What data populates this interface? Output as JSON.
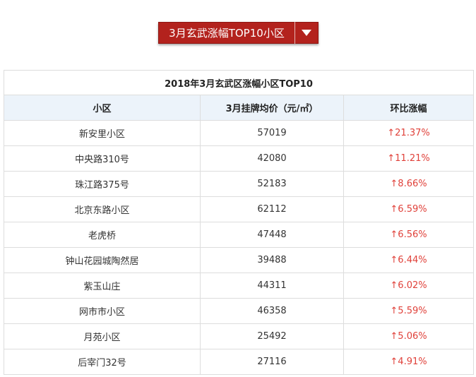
{
  "header": {
    "title": "3月玄武涨幅TOP10小区",
    "dropdown_icon": "caret-down-icon",
    "accent_color": "#b3221d"
  },
  "table": {
    "caption": "2018年3月玄武区涨幅小区TOP10",
    "columns": [
      "小区",
      "3月挂牌均价（元/㎡）",
      "环比涨幅"
    ],
    "rise_color": "#e0413a",
    "rows": [
      {
        "name": "新安里小区",
        "price": "57019",
        "change": "↑21.37%"
      },
      {
        "name": "中央路310号",
        "price": "42080",
        "change": "↑11.21%"
      },
      {
        "name": "珠江路375号",
        "price": "52183",
        "change": "↑8.66%"
      },
      {
        "name": "北京东路小区",
        "price": "62112",
        "change": "↑6.59%"
      },
      {
        "name": "老虎桥",
        "price": "47448",
        "change": "↑6.56%"
      },
      {
        "name": "钟山花园城陶然居",
        "price": "39488",
        "change": "↑6.44%"
      },
      {
        "name": "紫玉山庄",
        "price": "44311",
        "change": "↑6.02%"
      },
      {
        "name": "网市市小区",
        "price": "46358",
        "change": "↑5.59%"
      },
      {
        "name": "月苑小区",
        "price": "25492",
        "change": "↑5.06%"
      },
      {
        "name": "后宰门32号",
        "price": "27116",
        "change": "↑4.91%"
      }
    ]
  }
}
